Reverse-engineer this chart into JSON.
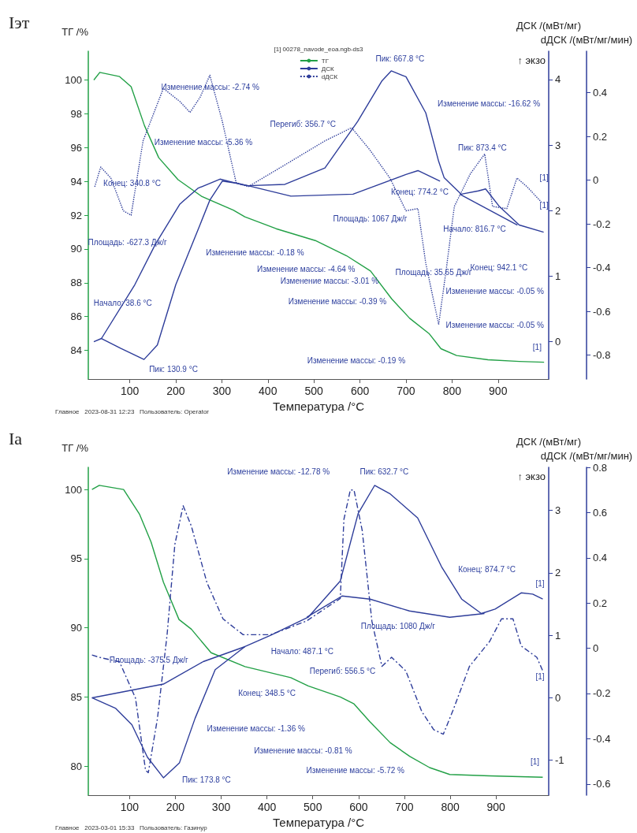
{
  "chart_data": [
    {
      "type": "line",
      "title": "Iэт",
      "xlabel": "Температура /°C",
      "ylabel": "ТГ /%",
      "y2label": "ДСК /(мВт/мг)",
      "y3label": "dДСК /(мВт/мг/мин)",
      "legend_title": "[1] 00278_navode_eoa.ngb-ds3",
      "legend": "top",
      "marker": "none",
      "grid": false,
      "xlim": [
        10,
        1010
      ],
      "xticks": [
        100,
        200,
        300,
        400,
        500,
        600,
        700,
        800,
        900
      ],
      "ylim": [
        82.3,
        101.7
      ],
      "yticks": [
        84,
        86,
        88,
        90,
        92,
        94,
        96,
        98,
        100
      ],
      "y2lim": [
        -0.57,
        4.43
      ],
      "y2ticks": [
        0,
        1,
        2,
        3,
        4
      ],
      "y3lim": [
        -0.91,
        0.59
      ],
      "y3ticks": [
        -0.8,
        -0.6,
        -0.4,
        -0.2,
        0.0,
        0.2,
        0.4
      ],
      "series": [
        {
          "name": "ТГ",
          "color": "#22a046",
          "axis": "y",
          "line_style": "solid",
          "x": [
            22,
            35,
            78,
            103,
            132,
            163,
            205,
            257,
            325,
            350,
            418,
            503,
            571,
            623,
            669,
            708,
            750,
            776,
            810,
            878,
            946,
            1000
          ],
          "values": [
            100,
            100.45,
            100.2,
            99.6,
            97.3,
            95.4,
            94.1,
            93.1,
            92.3,
            91.9,
            91.2,
            90.5,
            89.6,
            88.7,
            87.05,
            85.9,
            85.0,
            84.1,
            83.7,
            83.45,
            83.35,
            83.3
          ]
        },
        {
          "name": "ДСК",
          "color": "#2e3d9a",
          "axis": "y2",
          "line_style": "solid",
          "x": [
            22,
            38.6,
            80,
            131,
            160,
            200,
            253,
            274,
            301,
            330,
            357,
            437,
            524,
            595,
            648,
            668,
            700,
            743,
            771,
            783,
            820,
            857,
            873,
            902,
            946,
            999
          ],
          "values": [
            0.0,
            0.05,
            -0.1,
            -0.27,
            -0.05,
            0.87,
            1.79,
            2.16,
            2.45,
            2.42,
            2.38,
            2.4,
            2.65,
            3.36,
            3.98,
            4.13,
            4.04,
            3.49,
            2.75,
            2.5,
            2.25,
            2.3,
            2.33,
            2.07,
            1.78,
            1.67
          ]
        },
        {
          "name": "dДСК",
          "color": "#2e3d9a",
          "axis": "y3",
          "line_style": "dotted",
          "x": [
            24,
            37,
            59,
            86,
            103,
            129,
            173,
            209,
            231,
            253,
            274,
            301,
            331,
            357,
            437,
            524,
            582,
            621,
            665,
            700,
            726,
            743,
            771,
            788,
            805,
            840,
            871,
            888,
            919,
            941,
            963,
            994
          ],
          "values": [
            -0.03,
            0.06,
            0.01,
            -0.14,
            -0.16,
            0.18,
            0.42,
            0.36,
            0.31,
            0.38,
            0.48,
            0.27,
            -0.01,
            -0.03,
            0.07,
            0.18,
            0.24,
            0.14,
            0.01,
            -0.14,
            -0.13,
            -0.38,
            -0.66,
            -0.4,
            -0.12,
            0.03,
            0.12,
            -0.12,
            -0.13,
            0.01,
            -0.03,
            -0.1
          ]
        },
        {
          "color": "#2e3d9a",
          "axis": "y2",
          "line_style": "solid",
          "x": [
            38.6,
            111,
            156,
            209,
            248,
            296,
            341,
            357,
            450,
            585,
            700,
            726,
            774
          ],
          "values": [
            0.05,
            0.87,
            1.49,
            2.1,
            2.34,
            2.48,
            2.4,
            2.38,
            2.22,
            2.25,
            2.55,
            2.61,
            2.45
          ]
        },
        {
          "color": "#2e3d9a",
          "axis": "y2",
          "line_style": "solid",
          "x": [
            816.7,
            942.1
          ],
          "values": [
            2.25,
            1.78
          ]
        }
      ],
      "annotations": [
        "↑ экзо",
        "Главное   2023-08-31 12:23   Пользователь: Operator",
        "Изменение массы: -2.74 %",
        "Изменение массы: -5.36 %",
        "Перегиб: 356.7 °C",
        "Конец: 340.8 °C",
        "Площадь: -627.3 Дж/г",
        "Пик: 667.8 °C",
        "Изменение массы: -16.62 %",
        "Пик: 873.4 °C",
        "Конец: 774.2 °C",
        "Начало: 816.7 °C",
        "Площадь: 1067 Дж/г",
        "Площадь: 35.65 Дж/г",
        "Конец: 942.1 °C",
        "Изменение массы: -0.18 %",
        "Изменение массы: -4.64 %",
        "Изменение массы: -3.01 %",
        "Изменение массы: -0.39 %",
        "Изменение массы: -0.05 %",
        "Изменение массы: -0.05 %",
        "Изменение массы: -0.19 %",
        "Начало: 38.6 °C",
        "Пик: 130.9 °C",
        "[1]",
        "[1]",
        "[1]"
      ]
    },
    {
      "type": "line",
      "title": "Iа",
      "xlabel": "Температура /°C",
      "ylabel": "ТГ /%",
      "y2label": "ДСК /(мВт/мг)",
      "y3label": "dДСК /(мВт/мг/мин)",
      "marker": "none",
      "grid": false,
      "xlim": [
        10,
        1015
      ],
      "xticks": [
        100,
        200,
        300,
        400,
        500,
        600,
        700,
        800,
        900
      ],
      "ylim": [
        77.9,
        101.6
      ],
      "yticks": [
        80,
        85,
        90,
        95,
        100
      ],
      "y2lim": [
        -1.56,
        3.69
      ],
      "y2ticks": [
        -1,
        0,
        1,
        2,
        3
      ],
      "y3lim": [
        -0.65,
        0.8
      ],
      "y3ticks": [
        -0.6,
        -0.4,
        -0.2,
        0.0,
        0.2,
        0.4,
        0.6,
        0.8
      ],
      "series": [
        {
          "color": "#22a046",
          "axis": "y",
          "line_style": "solid",
          "x": [
            18,
            34,
            87,
            122,
            147,
            174,
            208,
            235,
            278,
            352,
            452,
            490,
            560,
            590,
            625,
            669,
            712,
            755,
            799,
            886,
            1002
          ],
          "values": [
            100,
            100.3,
            100,
            98.2,
            96.2,
            93.3,
            90.6,
            89.9,
            88.2,
            87.2,
            86.4,
            85.8,
            85.0,
            84.5,
            83.2,
            81.7,
            80.7,
            79.9,
            79.4,
            79.3,
            79.2
          ]
        },
        {
          "color": "#2e3d9a",
          "axis": "y2",
          "line_style": "solid",
          "x": [
            18,
            70,
            105,
            139,
            174,
            209,
            243,
            287,
            352,
            408,
            490,
            525,
            560,
            599,
            635,
            668,
            729,
            781,
            825,
            868,
            898,
            955,
            980,
            1002
          ],
          "values": [
            0.0,
            -0.17,
            -0.43,
            -0.95,
            -1.28,
            -1.04,
            -0.33,
            0.45,
            0.82,
            1.0,
            1.29,
            1.58,
            1.87,
            2.95,
            3.4,
            3.27,
            2.88,
            2.1,
            1.58,
            1.35,
            1.42,
            1.68,
            1.66,
            1.58
          ]
        },
        {
          "color": "#2e3d9a",
          "axis": "y3",
          "line_style": "dashed",
          "x": [
            18,
            34,
            78,
            113,
            135,
            141,
            161,
            182,
            199,
            217,
            235,
            269,
            304,
            348,
            408,
            486,
            530,
            560,
            568,
            582,
            590,
            608,
            629,
            651,
            672,
            703,
            738,
            764,
            785,
            807,
            842,
            886,
            912,
            937,
            955,
            989,
            1002
          ],
          "values": [
            -0.03,
            -0.04,
            -0.06,
            -0.22,
            -0.54,
            -0.55,
            -0.31,
            0.06,
            0.46,
            0.63,
            0.54,
            0.29,
            0.13,
            0.06,
            0.06,
            0.12,
            0.18,
            0.22,
            0.57,
            0.7,
            0.7,
            0.52,
            0.12,
            -0.08,
            -0.04,
            -0.1,
            -0.28,
            -0.36,
            -0.38,
            -0.27,
            -0.08,
            0.03,
            0.13,
            0.13,
            0.01,
            -0.04,
            -0.1
          ]
        },
        {
          "color": "#2e3d9a",
          "axis": "y2",
          "line_style": "solid",
          "x": [
            18,
            174,
            261,
            352
          ],
          "values": [
            0.0,
            0.22,
            0.58,
            0.82
          ]
        },
        {
          "color": "#2e3d9a",
          "axis": "y2",
          "line_style": "solid",
          "x": [
            487.1,
            564,
            625,
            711,
            799,
            874.7
          ],
          "values": [
            1.29,
            1.63,
            1.58,
            1.39,
            1.29,
            1.35
          ]
        }
      ],
      "annotations": [
        "↑ экзо",
        "Главное   2023-03-01 15:33   Пользователь: Газинур",
        "Изменение массы: -12.78 %",
        "Пик: 632.7 °C",
        "Конец: 874.7 °C",
        "Площадь: 1080 Дж/г",
        "Начало: 487.1 °C",
        "Перегиб: 556.5 °C",
        "Площадь: -375.5 Дж/г",
        "Конец: 348.5 °C",
        "Изменение массы: -1.36 %",
        "Изменение массы: -0.81 %",
        "Изменение массы: -5.72 %",
        "Пик: 173.8 °C",
        "[1]",
        "[1]",
        "[1]"
      ]
    }
  ]
}
